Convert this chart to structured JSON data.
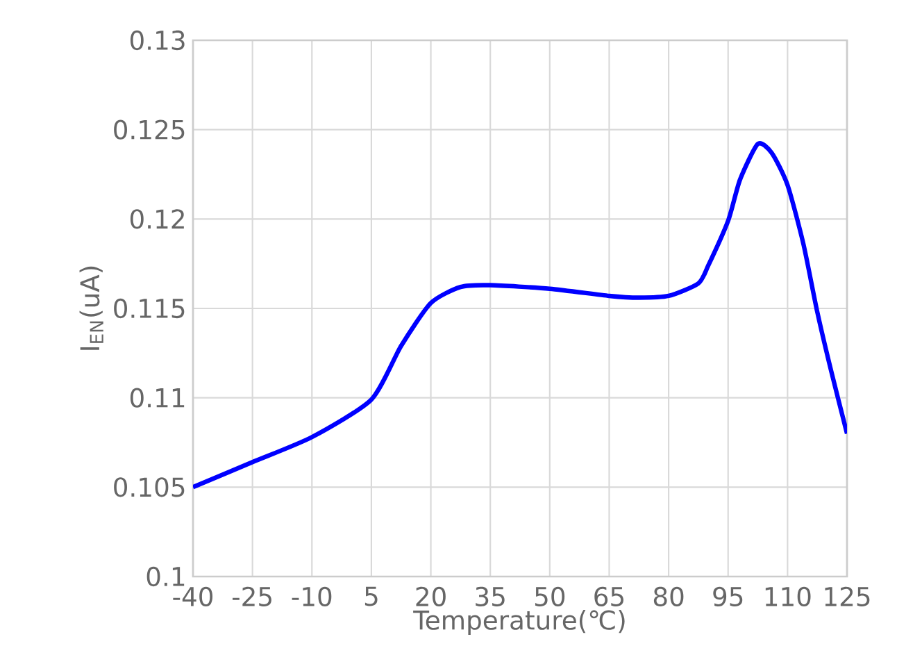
{
  "chart_data": {
    "type": "line",
    "xlabel": "Temperature(℃)",
    "ylabel": "I$_{EN}$(uA)",
    "series": [
      {
        "color": "#0000ff",
        "x": [
          -40,
          -25,
          -10,
          5,
          12.5,
          20,
          27.5,
          35,
          50,
          65,
          72.5,
          80,
          87.5,
          90,
          95,
          98,
          102.5,
          106,
          110,
          114,
          117.5,
          121,
          125
        ],
        "values": [
          0.105,
          0.1064,
          0.1078,
          0.1099,
          0.1129,
          0.1153,
          0.1162,
          0.1163,
          0.1161,
          0.1157,
          0.1156,
          0.1157,
          0.1164,
          0.1174,
          0.1199,
          0.1222,
          0.1242,
          0.1237,
          0.1219,
          0.1186,
          0.1148,
          0.1115,
          0.108
        ]
      }
    ],
    "xlim": [
      -40,
      125
    ],
    "xticks": [
      -40,
      -25,
      -10,
      5,
      20,
      35,
      50,
      65,
      80,
      95,
      110,
      125
    ],
    "ylim": [
      0.1,
      0.13
    ],
    "yticks": [
      0.1,
      0.105,
      0.11,
      0.115,
      0.12,
      0.125,
      0.13
    ],
    "grid": true,
    "marker": "none",
    "line_style": "solid"
  }
}
